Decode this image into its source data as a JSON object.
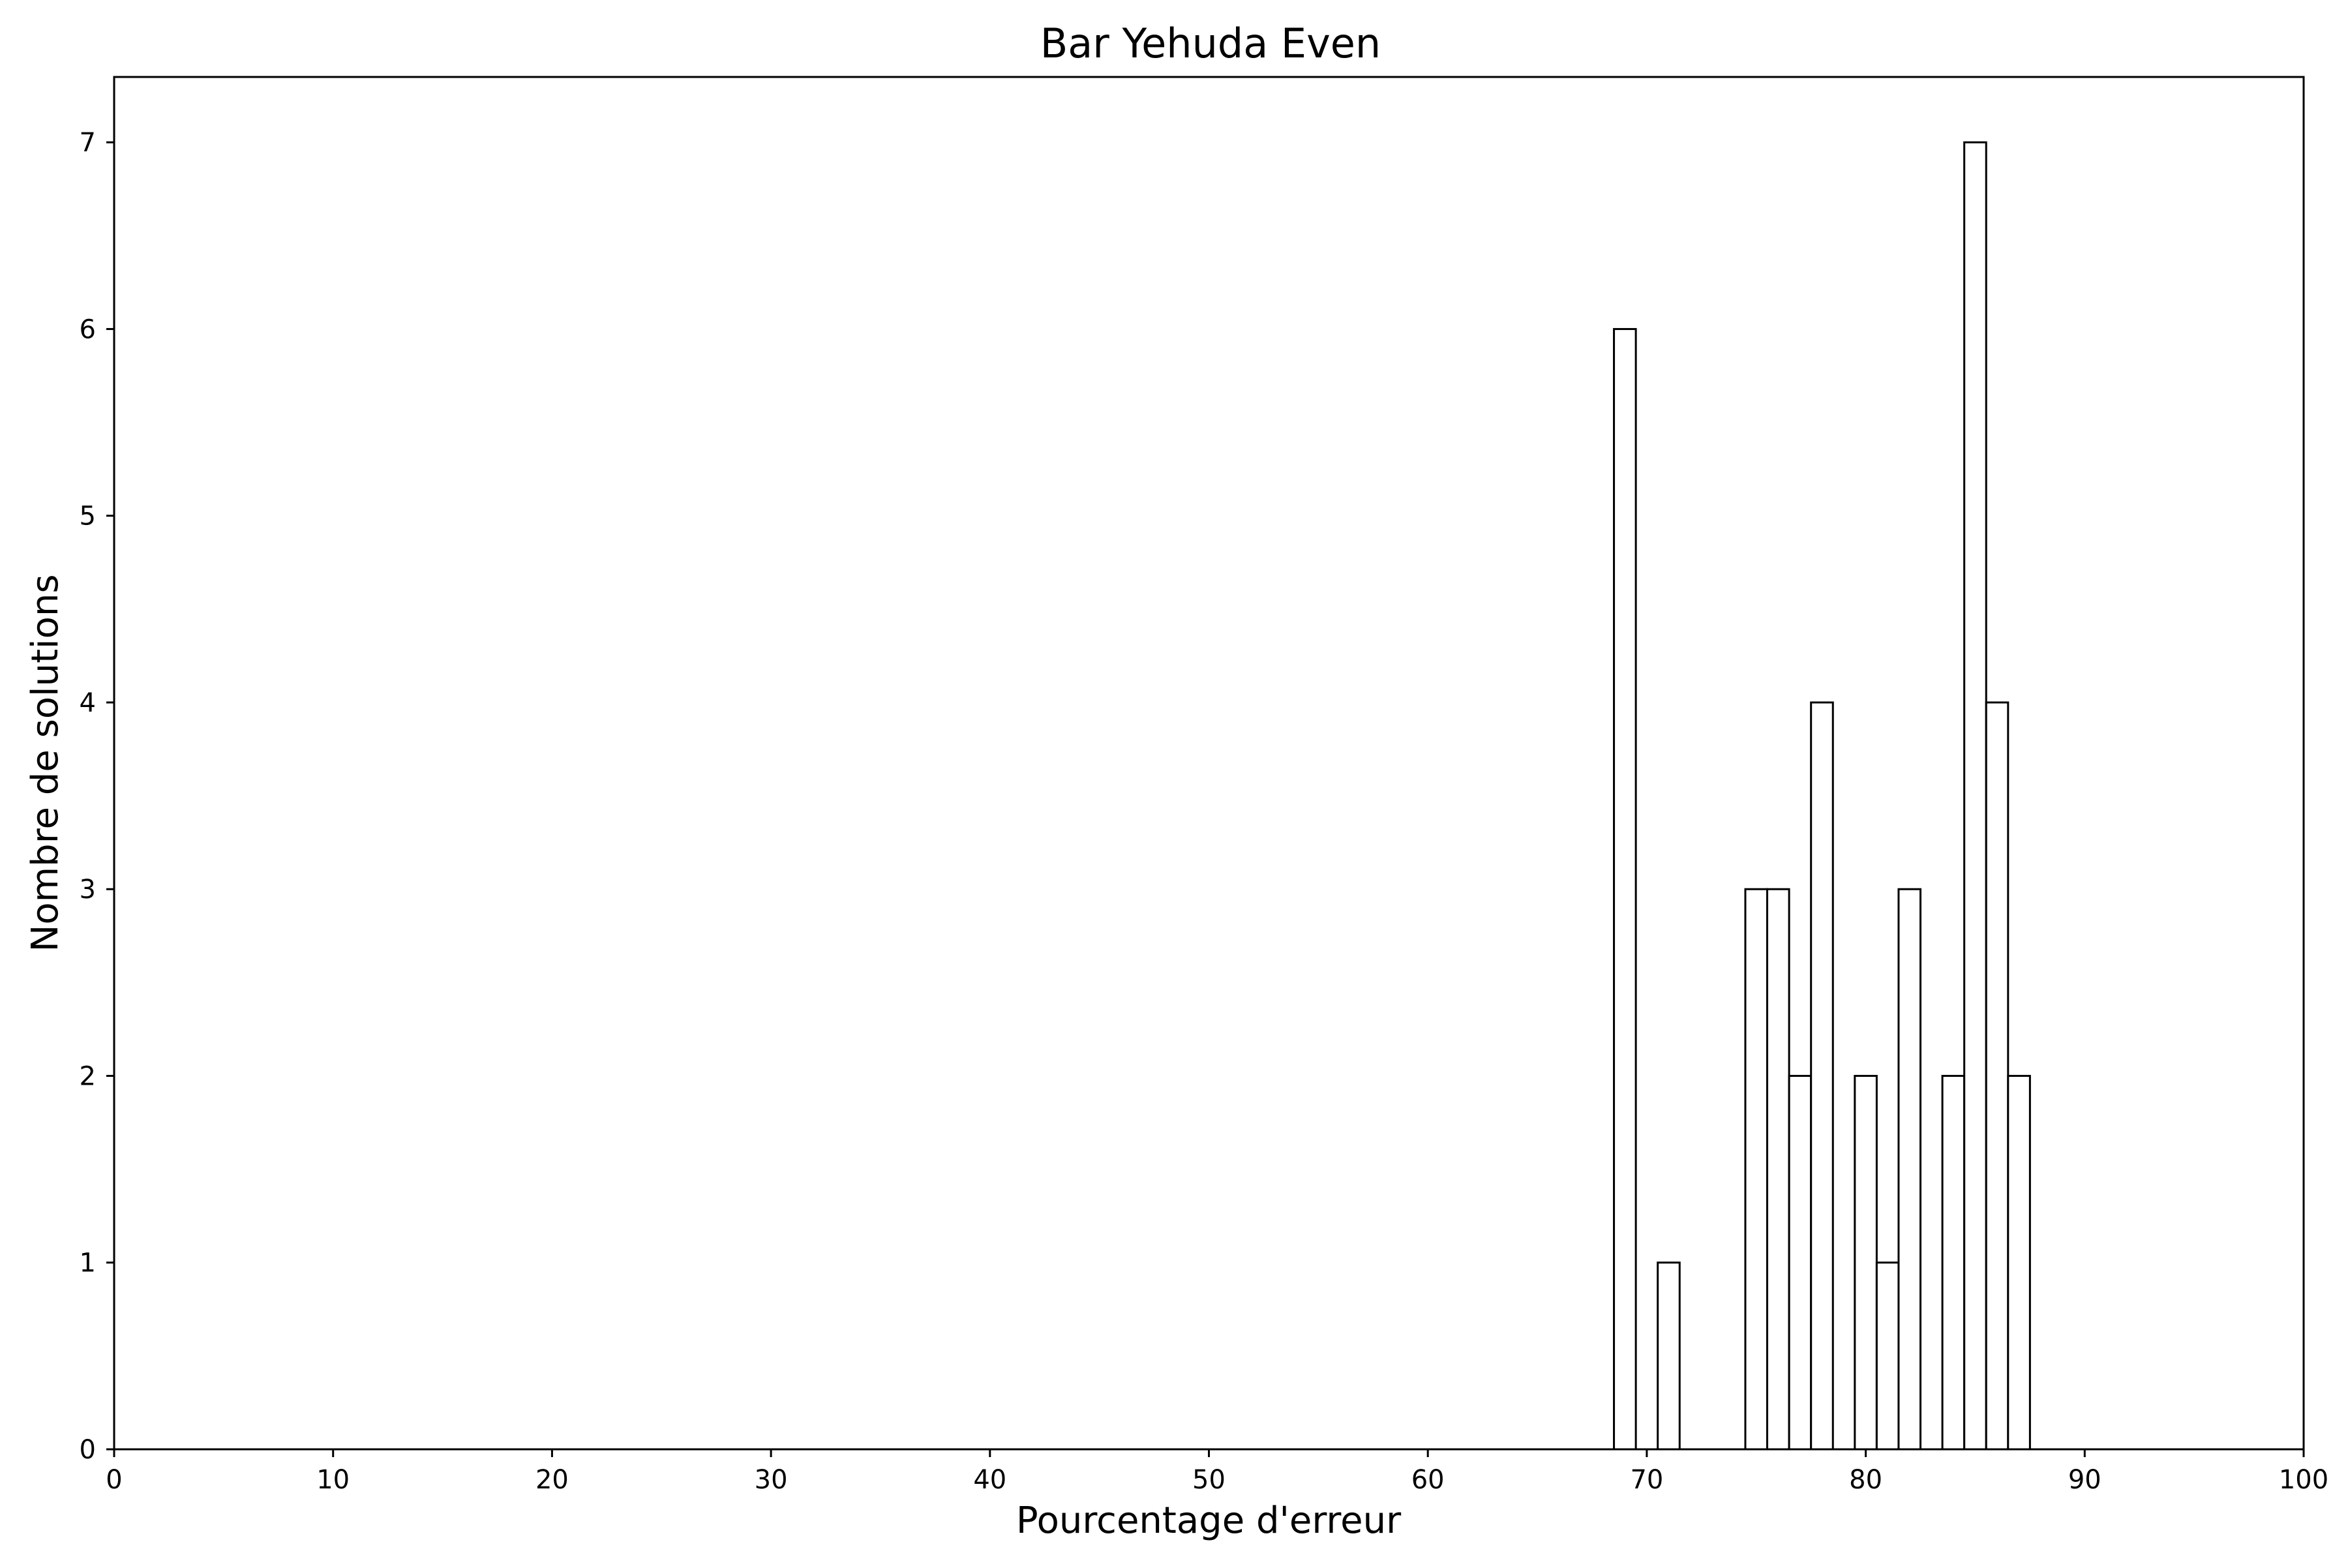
{
  "chart_data": {
    "type": "bar",
    "title": "Bar Yehuda Even",
    "xlabel": "Pourcentage d'erreur",
    "ylabel": "Nombre de solutions",
    "xlim": [
      0,
      100
    ],
    "ylim": [
      0,
      7.35
    ],
    "xticks": [
      0,
      10,
      20,
      30,
      40,
      50,
      60,
      70,
      80,
      90,
      100
    ],
    "yticks": [
      0,
      1,
      2,
      3,
      4,
      5,
      6,
      7
    ],
    "bin_width": 1,
    "grid": false,
    "colors": {
      "bar_fill": "#ffffff",
      "bar_stroke": "#000000",
      "axis": "#000000"
    },
    "bars": [
      {
        "x": 69,
        "value": 6
      },
      {
        "x": 71,
        "value": 1
      },
      {
        "x": 75,
        "value": 3
      },
      {
        "x": 76,
        "value": 3
      },
      {
        "x": 77,
        "value": 2
      },
      {
        "x": 78,
        "value": 4
      },
      {
        "x": 80,
        "value": 2
      },
      {
        "x": 81,
        "value": 1
      },
      {
        "x": 82,
        "value": 3
      },
      {
        "x": 84,
        "value": 2
      },
      {
        "x": 85,
        "value": 7
      },
      {
        "x": 86,
        "value": 4
      },
      {
        "x": 87,
        "value": 2
      }
    ]
  }
}
